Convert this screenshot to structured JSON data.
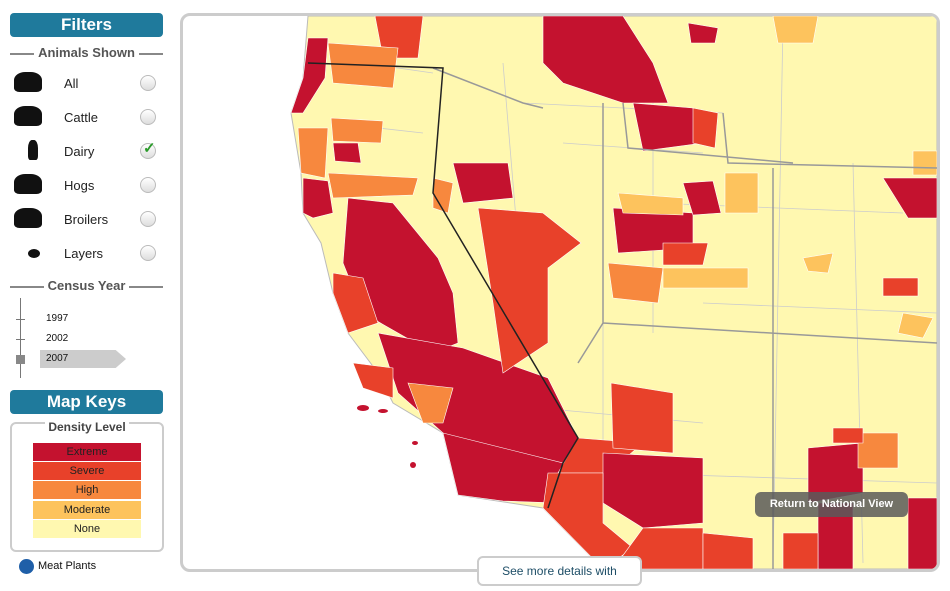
{
  "filters": {
    "title": "Filters",
    "animals_header": "Animals Shown",
    "animals": [
      {
        "label": "All",
        "checked": false
      },
      {
        "label": "Cattle",
        "checked": false
      },
      {
        "label": "Dairy",
        "checked": true
      },
      {
        "label": "Hogs",
        "checked": false
      },
      {
        "label": "Broilers",
        "checked": false
      },
      {
        "label": "Layers",
        "checked": false
      }
    ],
    "census_header": "Census Year",
    "years": [
      {
        "label": "1997",
        "selected": false
      },
      {
        "label": "2002",
        "selected": false
      },
      {
        "label": "2007",
        "selected": true
      }
    ]
  },
  "map_keys": {
    "title": "Map Keys",
    "density_title": "Density Level",
    "levels": [
      {
        "label": "Extreme",
        "color": "#c4122f"
      },
      {
        "label": "Severe",
        "color": "#e8412a"
      },
      {
        "label": "High",
        "color": "#f7883e"
      },
      {
        "label": "Moderate",
        "color": "#fdc35d"
      },
      {
        "label": "None",
        "color": "#fff8b0"
      }
    ],
    "meat_plants": "Meat Plants"
  },
  "map": {
    "return_button": "Return to National View",
    "details_button": "See more details with"
  }
}
